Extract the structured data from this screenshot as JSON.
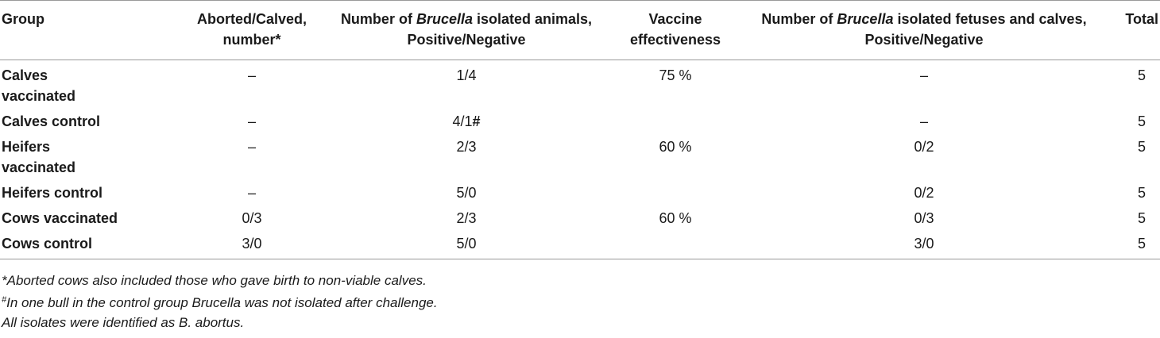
{
  "table": {
    "headers": {
      "group": "Group",
      "aborted": "Aborted/Calved, number*",
      "isolated_animals_pre": "Number of ",
      "isolated_animals_genus": "Brucella",
      "isolated_animals_post": " isolated animals, Positive/Negative",
      "effectiveness": "Vaccine effectiveness",
      "isolated_fetuses_pre": "Number of ",
      "isolated_fetuses_genus": "Brucella",
      "isolated_fetuses_post": " isolated fetuses and calves, Positive/Negative",
      "total": "Total"
    },
    "rows": [
      {
        "group": "Calves vaccinated",
        "aborted": "–",
        "animals": "1/4",
        "animals_mark": "",
        "effectiveness": "75 %",
        "fetuses": "–",
        "total": "5"
      },
      {
        "group": "Calves control",
        "aborted": "–",
        "animals": "4/1",
        "animals_mark": "#",
        "effectiveness": "",
        "fetuses": "–",
        "total": "5"
      },
      {
        "group": "Heifers vaccinated",
        "aborted": "–",
        "animals": "2/3",
        "animals_mark": "",
        "effectiveness": "60 %",
        "fetuses": "0/2",
        "total": "5"
      },
      {
        "group": "Heifers control",
        "aborted": "–",
        "animals": "5/0",
        "animals_mark": "",
        "effectiveness": "",
        "fetuses": "0/2",
        "total": "5"
      },
      {
        "group": "Cows vaccinated",
        "aborted": "0/3",
        "animals": "2/3",
        "animals_mark": "",
        "effectiveness": "60 %",
        "fetuses": "0/3",
        "total": "5"
      },
      {
        "group": "Cows control",
        "aborted": "3/0",
        "animals": "5/0",
        "animals_mark": "",
        "effectiveness": "",
        "fetuses": "3/0",
        "total": "5"
      }
    ]
  },
  "footnotes": {
    "aborted": "*Aborted cows also included those who gave birth to non-viable calves.",
    "bull_mark": "#",
    "bull": "In one bull in the control group Brucella was not isolated after challenge.",
    "isolates": "All isolates were identified as B. abortus."
  }
}
